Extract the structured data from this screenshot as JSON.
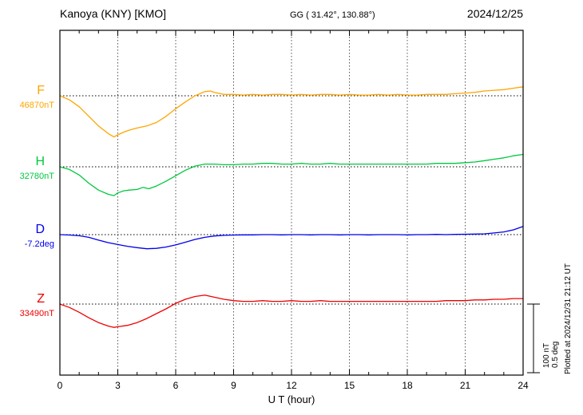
{
  "header": {
    "station": "Kanoya (KNY)  [KMO]",
    "coordinates": "GG ( 31.42°, 130.88°)",
    "date": "2024/12/25"
  },
  "x_axis": {
    "label": "U T (hour)",
    "min": 0,
    "max": 24
  },
  "scale_bar": {
    "nT_label": "100 nT",
    "deg_label": "0.5 deg"
  },
  "plotted_note": "Plotted at 2024/12/31 21:12 UT",
  "chart_data": {
    "type": "line",
    "title": "Kanoya (KNY) [KMO] geomagnetic components, 2024/12/25",
    "xlabel": "U T (hour)",
    "x_range": [
      0,
      24
    ],
    "x_ticks": [
      0,
      3,
      6,
      9,
      12,
      15,
      18,
      21,
      24
    ],
    "grid": "dotted vertical lines every 3 hours; dotted horizontal baseline per component",
    "scale": {
      "nT_per_division": 100,
      "deg_per_division": 0.5
    },
    "series": [
      {
        "name": "F",
        "baseline_value": "46870nT",
        "unit": "nT",
        "color": "#FFA500",
        "points": [
          [
            0,
            0
          ],
          [
            0.5,
            -6
          ],
          [
            1,
            -16
          ],
          [
            1.5,
            -30
          ],
          [
            2,
            -44
          ],
          [
            2.5,
            -55
          ],
          [
            2.8,
            -60
          ],
          [
            3,
            -57
          ],
          [
            3.3,
            -53
          ],
          [
            3.6,
            -50
          ],
          [
            4,
            -47
          ],
          [
            4.5,
            -44
          ],
          [
            5,
            -39
          ],
          [
            5.5,
            -30
          ],
          [
            6,
            -19
          ],
          [
            6.5,
            -9
          ],
          [
            7,
            0
          ],
          [
            7.5,
            6
          ],
          [
            7.8,
            7
          ],
          [
            8,
            5
          ],
          [
            8.5,
            2
          ],
          [
            9,
            2
          ],
          [
            9.5,
            1
          ],
          [
            10,
            2
          ],
          [
            10.5,
            1
          ],
          [
            11,
            2
          ],
          [
            11.5,
            2
          ],
          [
            12,
            1
          ],
          [
            12.5,
            2
          ],
          [
            13,
            1
          ],
          [
            13.5,
            2
          ],
          [
            14,
            2
          ],
          [
            14.5,
            1
          ],
          [
            15,
            2
          ],
          [
            15.5,
            1
          ],
          [
            16,
            1
          ],
          [
            16.5,
            2
          ],
          [
            17,
            1
          ],
          [
            17.5,
            2
          ],
          [
            18,
            1
          ],
          [
            18.5,
            1
          ],
          [
            19,
            2
          ],
          [
            19.5,
            2
          ],
          [
            20,
            2
          ],
          [
            20.5,
            3
          ],
          [
            21,
            4
          ],
          [
            21.5,
            5
          ],
          [
            22,
            7
          ],
          [
            22.5,
            8
          ],
          [
            23,
            9
          ],
          [
            23.5,
            11
          ],
          [
            24,
            13
          ]
        ]
      },
      {
        "name": "H",
        "baseline_value": "32780nT",
        "unit": "nT",
        "color": "#00C840",
        "points": [
          [
            0,
            0
          ],
          [
            0.5,
            -4
          ],
          [
            1,
            -12
          ],
          [
            1.5,
            -24
          ],
          [
            2,
            -34
          ],
          [
            2.5,
            -40
          ],
          [
            2.8,
            -42
          ],
          [
            3,
            -38
          ],
          [
            3.3,
            -35
          ],
          [
            3.6,
            -34
          ],
          [
            4,
            -33
          ],
          [
            4.3,
            -30
          ],
          [
            4.6,
            -32
          ],
          [
            5,
            -28
          ],
          [
            5.5,
            -21
          ],
          [
            6,
            -13
          ],
          [
            6.5,
            -5
          ],
          [
            7,
            1
          ],
          [
            7.5,
            4
          ],
          [
            8,
            4
          ],
          [
            8.5,
            3
          ],
          [
            9,
            3
          ],
          [
            9.5,
            4
          ],
          [
            10,
            4
          ],
          [
            10.5,
            5
          ],
          [
            11,
            5
          ],
          [
            11.5,
            4
          ],
          [
            12,
            4
          ],
          [
            12.5,
            5
          ],
          [
            13,
            4
          ],
          [
            13.5,
            4
          ],
          [
            14,
            5
          ],
          [
            14.5,
            4
          ],
          [
            15,
            4
          ],
          [
            15.5,
            4
          ],
          [
            16,
            4
          ],
          [
            16.5,
            4
          ],
          [
            17,
            4
          ],
          [
            17.5,
            4
          ],
          [
            18,
            4
          ],
          [
            18.5,
            4
          ],
          [
            19,
            4
          ],
          [
            19.5,
            5
          ],
          [
            20,
            5
          ],
          [
            20.5,
            5
          ],
          [
            21,
            6
          ],
          [
            21.5,
            7
          ],
          [
            22,
            9
          ],
          [
            22.5,
            11
          ],
          [
            23,
            13
          ],
          [
            23.5,
            16
          ],
          [
            24,
            18
          ]
        ]
      },
      {
        "name": "D",
        "baseline_value": "-7.2deg",
        "unit": "deg",
        "color": "#0000EE",
        "points": [
          [
            0,
            0
          ],
          [
            0.5,
            -0.003
          ],
          [
            1,
            -0.008
          ],
          [
            1.5,
            -0.02
          ],
          [
            2,
            -0.04
          ],
          [
            2.5,
            -0.058
          ],
          [
            3,
            -0.072
          ],
          [
            3.5,
            -0.085
          ],
          [
            4,
            -0.095
          ],
          [
            4.5,
            -0.103
          ],
          [
            5,
            -0.1
          ],
          [
            5.5,
            -0.09
          ],
          [
            6,
            -0.075
          ],
          [
            6.5,
            -0.055
          ],
          [
            7,
            -0.035
          ],
          [
            7.5,
            -0.02
          ],
          [
            8,
            -0.01
          ],
          [
            8.5,
            -0.005
          ],
          [
            9,
            -0.003
          ],
          [
            9.5,
            -0.002
          ],
          [
            10,
            -0.002
          ],
          [
            10.5,
            0
          ],
          [
            11,
            0
          ],
          [
            11.5,
            -0.002
          ],
          [
            12,
            0
          ],
          [
            12.5,
            0
          ],
          [
            13,
            -0.002
          ],
          [
            13.5,
            0
          ],
          [
            14,
            0
          ],
          [
            14.5,
            -0.002
          ],
          [
            15,
            0
          ],
          [
            15.5,
            0
          ],
          [
            16,
            -0.002
          ],
          [
            16.5,
            0
          ],
          [
            17,
            0
          ],
          [
            17.5,
            0
          ],
          [
            18,
            -0.002
          ],
          [
            18.5,
            0
          ],
          [
            19,
            0
          ],
          [
            19.5,
            0.002
          ],
          [
            20,
            0
          ],
          [
            20.5,
            0.002
          ],
          [
            21,
            0.003
          ],
          [
            21.5,
            0.004
          ],
          [
            22,
            0.006
          ],
          [
            22.5,
            0.012
          ],
          [
            23,
            0.02
          ],
          [
            23.5,
            0.035
          ],
          [
            24,
            0.06
          ]
        ]
      },
      {
        "name": "Z",
        "baseline_value": "33490nT",
        "unit": "nT",
        "color": "#EE0000",
        "points": [
          [
            0,
            0
          ],
          [
            0.5,
            -5
          ],
          [
            1,
            -12
          ],
          [
            1.5,
            -20
          ],
          [
            2,
            -27
          ],
          [
            2.5,
            -32
          ],
          [
            2.8,
            -34
          ],
          [
            3,
            -33
          ],
          [
            3.5,
            -31
          ],
          [
            4,
            -27
          ],
          [
            4.5,
            -21
          ],
          [
            5,
            -14
          ],
          [
            5.5,
            -7
          ],
          [
            6,
            1
          ],
          [
            6.5,
            7
          ],
          [
            7,
            11
          ],
          [
            7.5,
            13
          ],
          [
            8,
            10
          ],
          [
            8.5,
            7
          ],
          [
            9,
            5
          ],
          [
            9.5,
            4
          ],
          [
            10,
            4
          ],
          [
            10.5,
            5
          ],
          [
            11,
            4
          ],
          [
            11.5,
            4
          ],
          [
            12,
            5
          ],
          [
            12.5,
            4
          ],
          [
            13,
            4
          ],
          [
            13.5,
            5
          ],
          [
            14,
            4
          ],
          [
            14.5,
            4
          ],
          [
            15,
            4
          ],
          [
            15.5,
            4
          ],
          [
            16,
            4
          ],
          [
            16.5,
            4
          ],
          [
            17,
            4
          ],
          [
            17.5,
            4
          ],
          [
            18,
            4
          ],
          [
            18.5,
            4
          ],
          [
            19,
            4
          ],
          [
            19.5,
            4
          ],
          [
            20,
            5
          ],
          [
            20.5,
            5
          ],
          [
            21,
            5
          ],
          [
            21.5,
            6
          ],
          [
            22,
            6
          ],
          [
            22.5,
            7
          ],
          [
            23,
            7
          ],
          [
            23.5,
            8
          ],
          [
            24,
            8
          ]
        ]
      }
    ]
  }
}
